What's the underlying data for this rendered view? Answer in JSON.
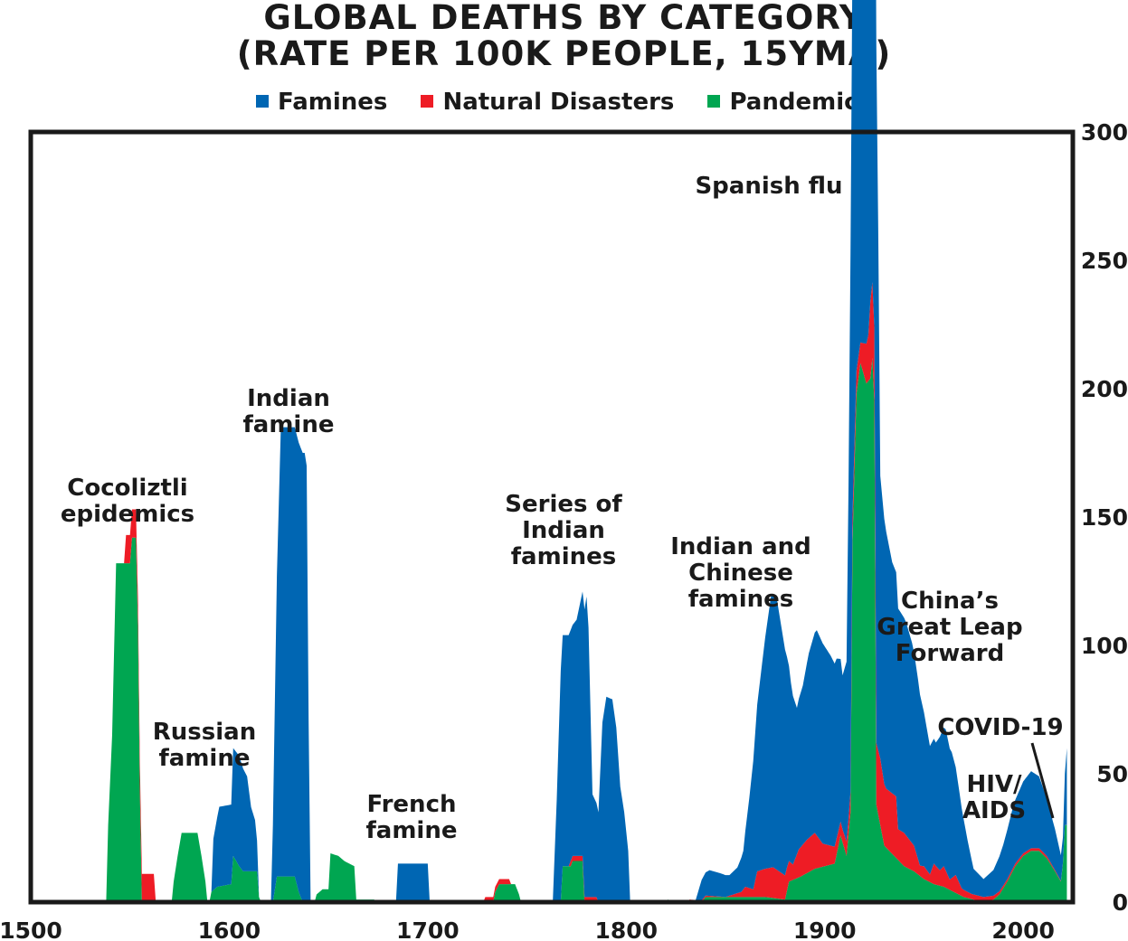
{
  "chart_data": {
    "type": "area",
    "stacked": true,
    "title_line1": "GLOBAL DEATHS BY CATEGORY",
    "title_line2": "(RATE PER 100K PEOPLE, 15YMA)",
    "xlim": [
      1500,
      2025
    ],
    "ylim": [
      0,
      300
    ],
    "x_ticks": [
      1500,
      1600,
      1700,
      1800,
      1900,
      2000
    ],
    "y_ticks": [
      0,
      50,
      100,
      150,
      200,
      250,
      300
    ],
    "y_axis_side": "right",
    "grid": false,
    "legend_position": "top",
    "series": [
      {
        "name": "Pandemics",
        "color": "#00a651",
        "points": [
          [
            1500,
            0
          ],
          [
            1538,
            0
          ],
          [
            1539,
            30
          ],
          [
            1541,
            65
          ],
          [
            1543,
            132
          ],
          [
            1550,
            132
          ],
          [
            1551,
            142
          ],
          [
            1553,
            142
          ],
          [
            1554,
            108
          ],
          [
            1555,
            42
          ],
          [
            1556,
            0
          ],
          [
            1571,
            0
          ],
          [
            1572,
            8
          ],
          [
            1574,
            18
          ],
          [
            1576,
            27
          ],
          [
            1584,
            27
          ],
          [
            1586,
            18
          ],
          [
            1588,
            8
          ],
          [
            1589,
            0
          ],
          [
            1590,
            0
          ],
          [
            1591,
            4
          ],
          [
            1594,
            6
          ],
          [
            1601,
            7
          ],
          [
            1602,
            18
          ],
          [
            1605,
            14
          ],
          [
            1607,
            12
          ],
          [
            1614,
            12
          ],
          [
            1615,
            2
          ],
          [
            1616,
            0
          ],
          [
            1622,
            0
          ],
          [
            1624,
            10
          ],
          [
            1633,
            10
          ],
          [
            1635,
            4
          ],
          [
            1637,
            0
          ],
          [
            1643,
            0
          ],
          [
            1644,
            3
          ],
          [
            1647,
            5
          ],
          [
            1650,
            5
          ],
          [
            1651,
            19
          ],
          [
            1655,
            18
          ],
          [
            1658,
            16
          ],
          [
            1663,
            14
          ],
          [
            1664,
            1
          ],
          [
            1673,
            1
          ],
          [
            1674,
            0
          ],
          [
            1733,
            0
          ],
          [
            1734,
            4
          ],
          [
            1736,
            7
          ],
          [
            1744,
            7
          ],
          [
            1746,
            3
          ],
          [
            1747,
            0
          ],
          [
            1767,
            0
          ],
          [
            1768,
            14
          ],
          [
            1772,
            14
          ],
          [
            1773,
            16
          ],
          [
            1778,
            16
          ],
          [
            1779,
            0
          ],
          [
            1820,
            0
          ],
          [
            1821,
            1
          ],
          [
            1824,
            0
          ],
          [
            1838,
            0
          ],
          [
            1840,
            2
          ],
          [
            1850,
            2
          ],
          [
            1860,
            2
          ],
          [
            1870,
            2
          ],
          [
            1880,
            1
          ],
          [
            1882,
            8
          ],
          [
            1888,
            10
          ],
          [
            1895,
            13
          ],
          [
            1900,
            14
          ],
          [
            1905,
            15
          ],
          [
            1908,
            26
          ],
          [
            1911,
            18
          ],
          [
            1913,
            35
          ],
          [
            1914,
            140
          ],
          [
            1916,
            198
          ],
          [
            1918,
            210
          ],
          [
            1921,
            202
          ],
          [
            1923,
            204
          ],
          [
            1924,
            212
          ],
          [
            1925,
            195
          ],
          [
            1926,
            38
          ],
          [
            1930,
            22
          ],
          [
            1935,
            18
          ],
          [
            1940,
            14
          ],
          [
            1945,
            12
          ],
          [
            1950,
            9
          ],
          [
            1955,
            7
          ],
          [
            1960,
            6
          ],
          [
            1965,
            4
          ],
          [
            1970,
            2
          ],
          [
            1975,
            1
          ],
          [
            1980,
            0
          ],
          [
            1985,
            1
          ],
          [
            1988,
            3
          ],
          [
            1992,
            8
          ],
          [
            1996,
            14
          ],
          [
            2000,
            18
          ],
          [
            2004,
            20
          ],
          [
            2008,
            20
          ],
          [
            2012,
            17
          ],
          [
            2016,
            12
          ],
          [
            2019,
            8
          ],
          [
            2020,
            15
          ],
          [
            2021,
            30
          ],
          [
            2022,
            30
          ]
        ]
      },
      {
        "name": "Natural Disasters",
        "color": "#ee1c25",
        "points": [
          [
            1500,
            0
          ],
          [
            1547,
            0
          ],
          [
            1548,
            11
          ],
          [
            1562,
            11
          ],
          [
            1563,
            0
          ],
          [
            1728,
            0
          ],
          [
            1729,
            2
          ],
          [
            1741,
            2
          ],
          [
            1742,
            0
          ],
          [
            1771,
            0
          ],
          [
            1772,
            2
          ],
          [
            1785,
            2
          ],
          [
            1786,
            0
          ],
          [
            1830,
            0
          ],
          [
            1832,
            1
          ],
          [
            1850,
            0
          ],
          [
            1858,
            2
          ],
          [
            1860,
            4
          ],
          [
            1864,
            3
          ],
          [
            1866,
            10
          ],
          [
            1874,
            12
          ],
          [
            1881,
            9
          ],
          [
            1884,
            6
          ],
          [
            1887,
            11
          ],
          [
            1891,
            13
          ],
          [
            1895,
            14
          ],
          [
            1899,
            9
          ],
          [
            1904,
            7
          ],
          [
            1909,
            5
          ],
          [
            1912,
            6
          ],
          [
            1914,
            10
          ],
          [
            1918,
            8
          ],
          [
            1922,
            18
          ],
          [
            1923,
            30
          ],
          [
            1925,
            29
          ],
          [
            1926,
            24
          ],
          [
            1928,
            26
          ],
          [
            1931,
            23
          ],
          [
            1936,
            24
          ],
          [
            1937,
            12
          ],
          [
            1940,
            13
          ],
          [
            1945,
            10
          ],
          [
            1948,
            4
          ],
          [
            1950,
            5
          ],
          [
            1953,
            3
          ],
          [
            1955,
            8
          ],
          [
            1958,
            6
          ],
          [
            1960,
            8
          ],
          [
            1963,
            4
          ],
          [
            1966,
            7
          ],
          [
            1969,
            3
          ],
          [
            1974,
            2
          ],
          [
            1980,
            2
          ],
          [
            1990,
            1
          ],
          [
            2000,
            1
          ],
          [
            2010,
            1
          ],
          [
            2022,
            0
          ]
        ]
      },
      {
        "name": "Famines",
        "color": "#0066b3",
        "points": [
          [
            1500,
            0
          ],
          [
            1591,
            0
          ],
          [
            1592,
            20
          ],
          [
            1595,
            31
          ],
          [
            1601,
            31
          ],
          [
            1602,
            42
          ],
          [
            1605,
            43
          ],
          [
            1607,
            40
          ],
          [
            1609,
            37
          ],
          [
            1611,
            25
          ],
          [
            1613,
            20
          ],
          [
            1614,
            12
          ],
          [
            1615,
            0
          ],
          [
            1621,
            0
          ],
          [
            1622,
            30
          ],
          [
            1624,
            117
          ],
          [
            1626,
            175
          ],
          [
            1638,
            175
          ],
          [
            1639,
            170
          ],
          [
            1640,
            70
          ],
          [
            1641,
            0
          ],
          [
            1684,
            0
          ],
          [
            1685,
            15
          ],
          [
            1700,
            15
          ],
          [
            1701,
            0
          ],
          [
            1763,
            0
          ],
          [
            1765,
            40
          ],
          [
            1767,
            90
          ],
          [
            1773,
            90
          ],
          [
            1775,
            92
          ],
          [
            1778,
            103
          ],
          [
            1779,
            112
          ],
          [
            1780,
            117
          ],
          [
            1781,
            105
          ],
          [
            1783,
            40
          ],
          [
            1786,
            35
          ],
          [
            1788,
            70
          ],
          [
            1790,
            80
          ],
          [
            1793,
            79
          ],
          [
            1795,
            68
          ],
          [
            1797,
            45
          ],
          [
            1799,
            35
          ],
          [
            1801,
            20
          ],
          [
            1802,
            0
          ],
          [
            1835,
            0
          ],
          [
            1838,
            8
          ],
          [
            1842,
            10
          ],
          [
            1848,
            9
          ],
          [
            1852,
            8
          ],
          [
            1856,
            10
          ],
          [
            1859,
            15
          ],
          [
            1862,
            35
          ],
          [
            1866,
            65
          ],
          [
            1870,
            90
          ],
          [
            1873,
            106
          ],
          [
            1876,
            105
          ],
          [
            1880,
            88
          ],
          [
            1883,
            70
          ],
          [
            1886,
            57
          ],
          [
            1889,
            62
          ],
          [
            1892,
            72
          ],
          [
            1896,
            80
          ],
          [
            1899,
            78
          ],
          [
            1903,
            74
          ],
          [
            1906,
            70
          ],
          [
            1909,
            60
          ],
          [
            1911,
            70
          ],
          [
            1912,
            130
          ],
          [
            1913,
            210
          ],
          [
            1916,
            240
          ],
          [
            1918,
            245
          ],
          [
            1920,
            258
          ],
          [
            1922,
            270
          ],
          [
            1925,
            280
          ],
          [
            1926,
            272
          ],
          [
            1927,
            200
          ],
          [
            1928,
            110
          ],
          [
            1931,
            100
          ],
          [
            1934,
            90
          ],
          [
            1937,
            86
          ],
          [
            1941,
            83
          ],
          [
            1944,
            78
          ],
          [
            1947,
            70
          ],
          [
            1950,
            60
          ],
          [
            1953,
            50
          ],
          [
            1956,
            48
          ],
          [
            1958,
            52
          ],
          [
            1961,
            55
          ],
          [
            1964,
            49
          ],
          [
            1968,
            35
          ],
          [
            1972,
            20
          ],
          [
            1975,
            10
          ],
          [
            1980,
            7
          ],
          [
            1985,
            10
          ],
          [
            1990,
            16
          ],
          [
            1995,
            24
          ],
          [
            2000,
            28
          ],
          [
            2004,
            30
          ],
          [
            2008,
            28
          ],
          [
            2012,
            22
          ],
          [
            2016,
            16
          ],
          [
            2019,
            10
          ],
          [
            2020,
            10
          ],
          [
            2021,
            20
          ],
          [
            2022,
            30
          ]
        ]
      }
    ],
    "annotations": {
      "cocoliztli": [
        "Cocoliztli",
        "epidemics"
      ],
      "russian": [
        "Russian",
        "famine"
      ],
      "indian": [
        "Indian",
        "famine"
      ],
      "french": [
        "French",
        "famine"
      ],
      "series_indian": [
        "Series of",
        "Indian",
        "famines"
      ],
      "indian_chinese": [
        "Indian and",
        "Chinese",
        "famines"
      ],
      "spanish_flu": [
        "Spanish flu"
      ],
      "china_glf": [
        "China’s",
        "Great Leap",
        "Forward"
      ],
      "covid": [
        "COVID-19"
      ],
      "hiv": [
        "HIV/",
        "AIDS"
      ]
    }
  }
}
